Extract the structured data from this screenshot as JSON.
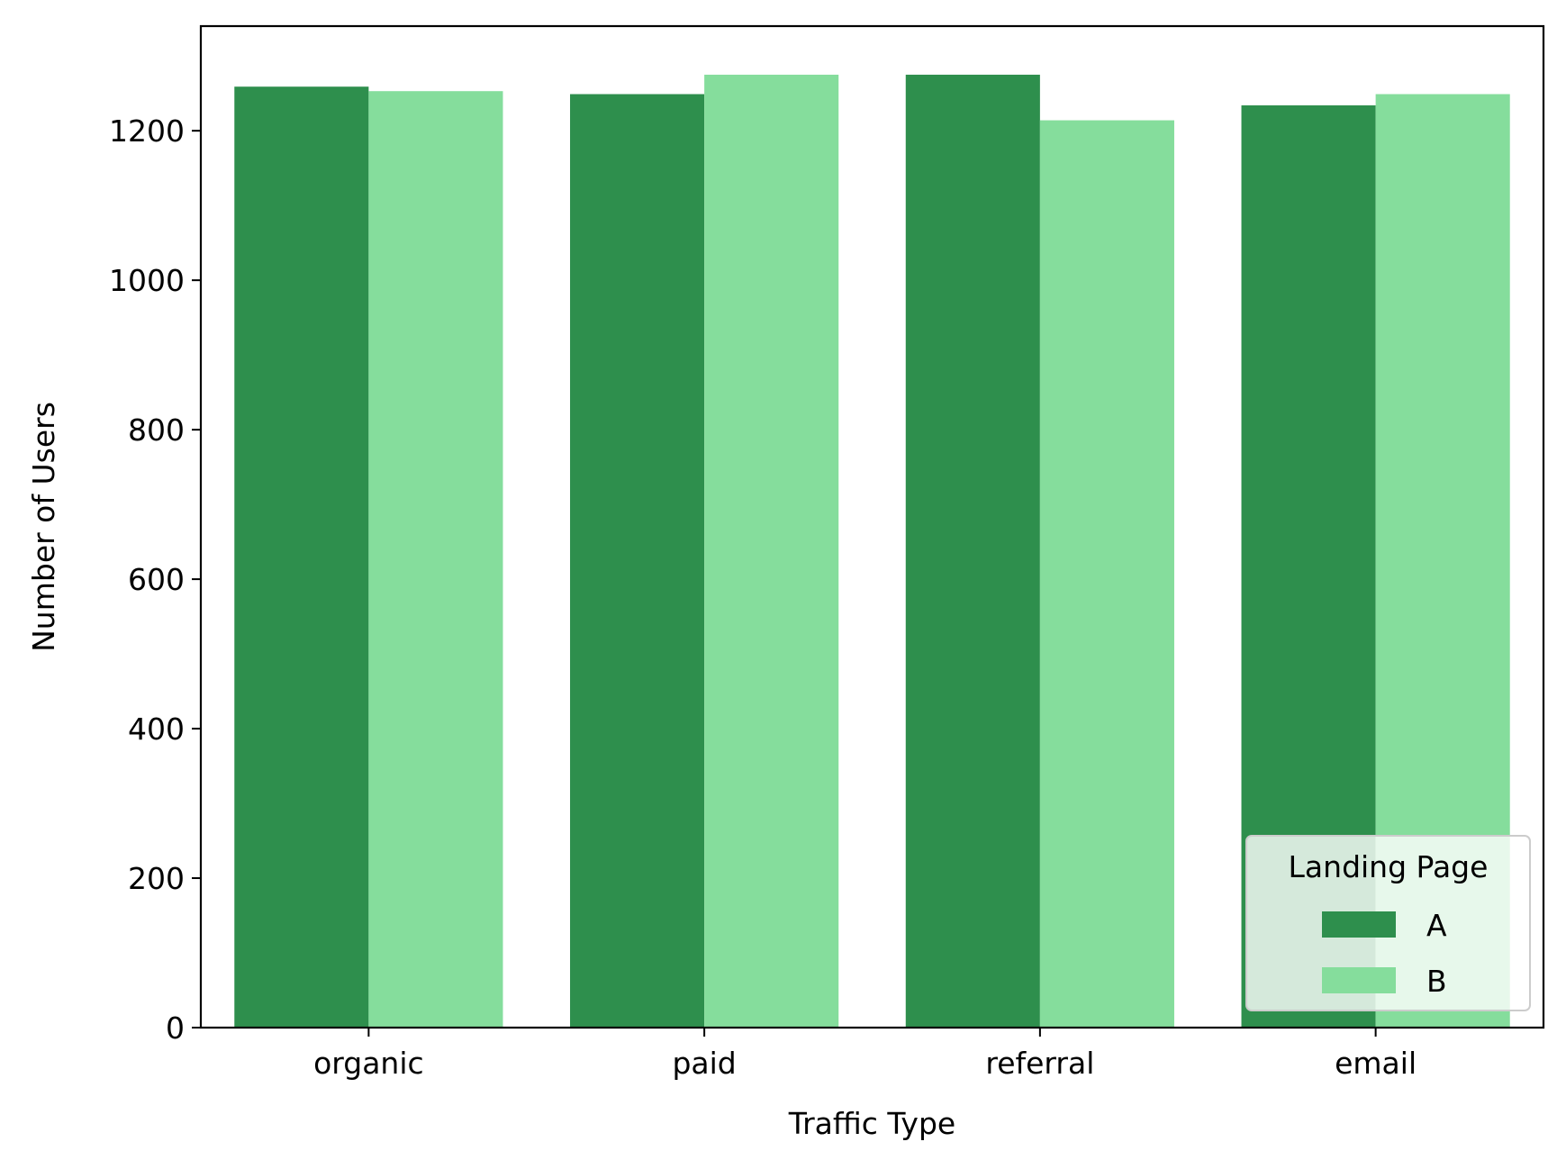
{
  "chart_data": {
    "type": "bar",
    "title": "",
    "xlabel": "Traffic Type",
    "ylabel": "Number of Users",
    "categories": [
      "organic",
      "paid",
      "referral",
      "email"
    ],
    "series": [
      {
        "name": "A",
        "color": "#2e8f4d",
        "values": [
          1259,
          1249,
          1275,
          1234
        ]
      },
      {
        "name": "B",
        "color": "#85dd9c",
        "values": [
          1253,
          1275,
          1214,
          1249
        ]
      }
    ],
    "ylim": [
      0,
      1340
    ],
    "yticks": [
      0,
      200,
      400,
      600,
      800,
      1000,
      1200
    ],
    "grid": false,
    "legend": {
      "title": "Landing Page",
      "placement": "lower right"
    }
  }
}
